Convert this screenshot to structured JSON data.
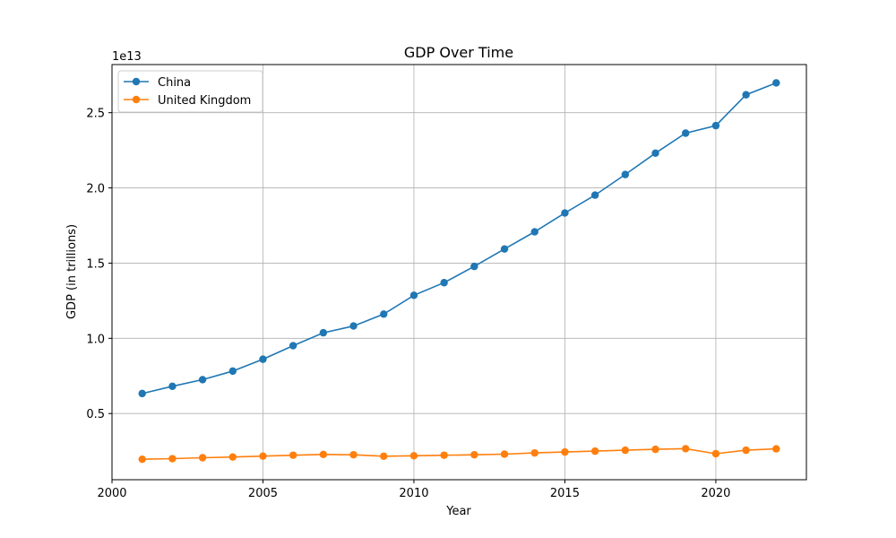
{
  "chart_data": {
    "type": "line",
    "title": "GDP Over Time",
    "xlabel": "Year",
    "ylabel": "GDP (in trillions)",
    "y_offset_label": "1e13",
    "xlim": [
      2000,
      2023
    ],
    "ylim": [
      600000000000.0,
      28200000000000.0
    ],
    "xticks": [
      2000,
      2005,
      2010,
      2015,
      2020
    ],
    "yticks": [
      5000000000000.0,
      10000000000000.0,
      15000000000000.0,
      20000000000000.0,
      25000000000000.0
    ],
    "ytick_labels": [
      "0.5",
      "1.0",
      "1.5",
      "2.0",
      "2.5"
    ],
    "grid": true,
    "legend_position": "upper-left",
    "x": [
      2001,
      2002,
      2003,
      2004,
      2005,
      2006,
      2007,
      2008,
      2009,
      2010,
      2011,
      2012,
      2013,
      2014,
      2015,
      2016,
      2017,
      2018,
      2019,
      2020,
      2021,
      2022
    ],
    "series": [
      {
        "name": "China",
        "color": "#1f77b4",
        "marker": "circle",
        "values": [
          6330000000000.0,
          6810000000000.0,
          7250000000000.0,
          7820000000000.0,
          8610000000000.0,
          9510000000000.0,
          10370000000000.0,
          10820000000000.0,
          11610000000000.0,
          12860000000000.0,
          13700000000000.0,
          14780000000000.0,
          15940000000000.0,
          17080000000000.0,
          18330000000000.0,
          19520000000000.0,
          20890000000000.0,
          22310000000000.0,
          23640000000000.0,
          24140000000000.0,
          26190000000000.0,
          26980000000000.0
        ]
      },
      {
        "name": "United Kingdom",
        "color": "#ff7f0e",
        "marker": "circle",
        "values": [
          1960000000000.0,
          2000000000000.0,
          2060000000000.0,
          2110000000000.0,
          2170000000000.0,
          2230000000000.0,
          2280000000000.0,
          2260000000000.0,
          2160000000000.0,
          2190000000000.0,
          2230000000000.0,
          2260000000000.0,
          2300000000000.0,
          2380000000000.0,
          2440000000000.0,
          2500000000000.0,
          2560000000000.0,
          2620000000000.0,
          2660000000000.0,
          2330000000000.0,
          2560000000000.0,
          2650000000000.0
        ]
      }
    ]
  }
}
